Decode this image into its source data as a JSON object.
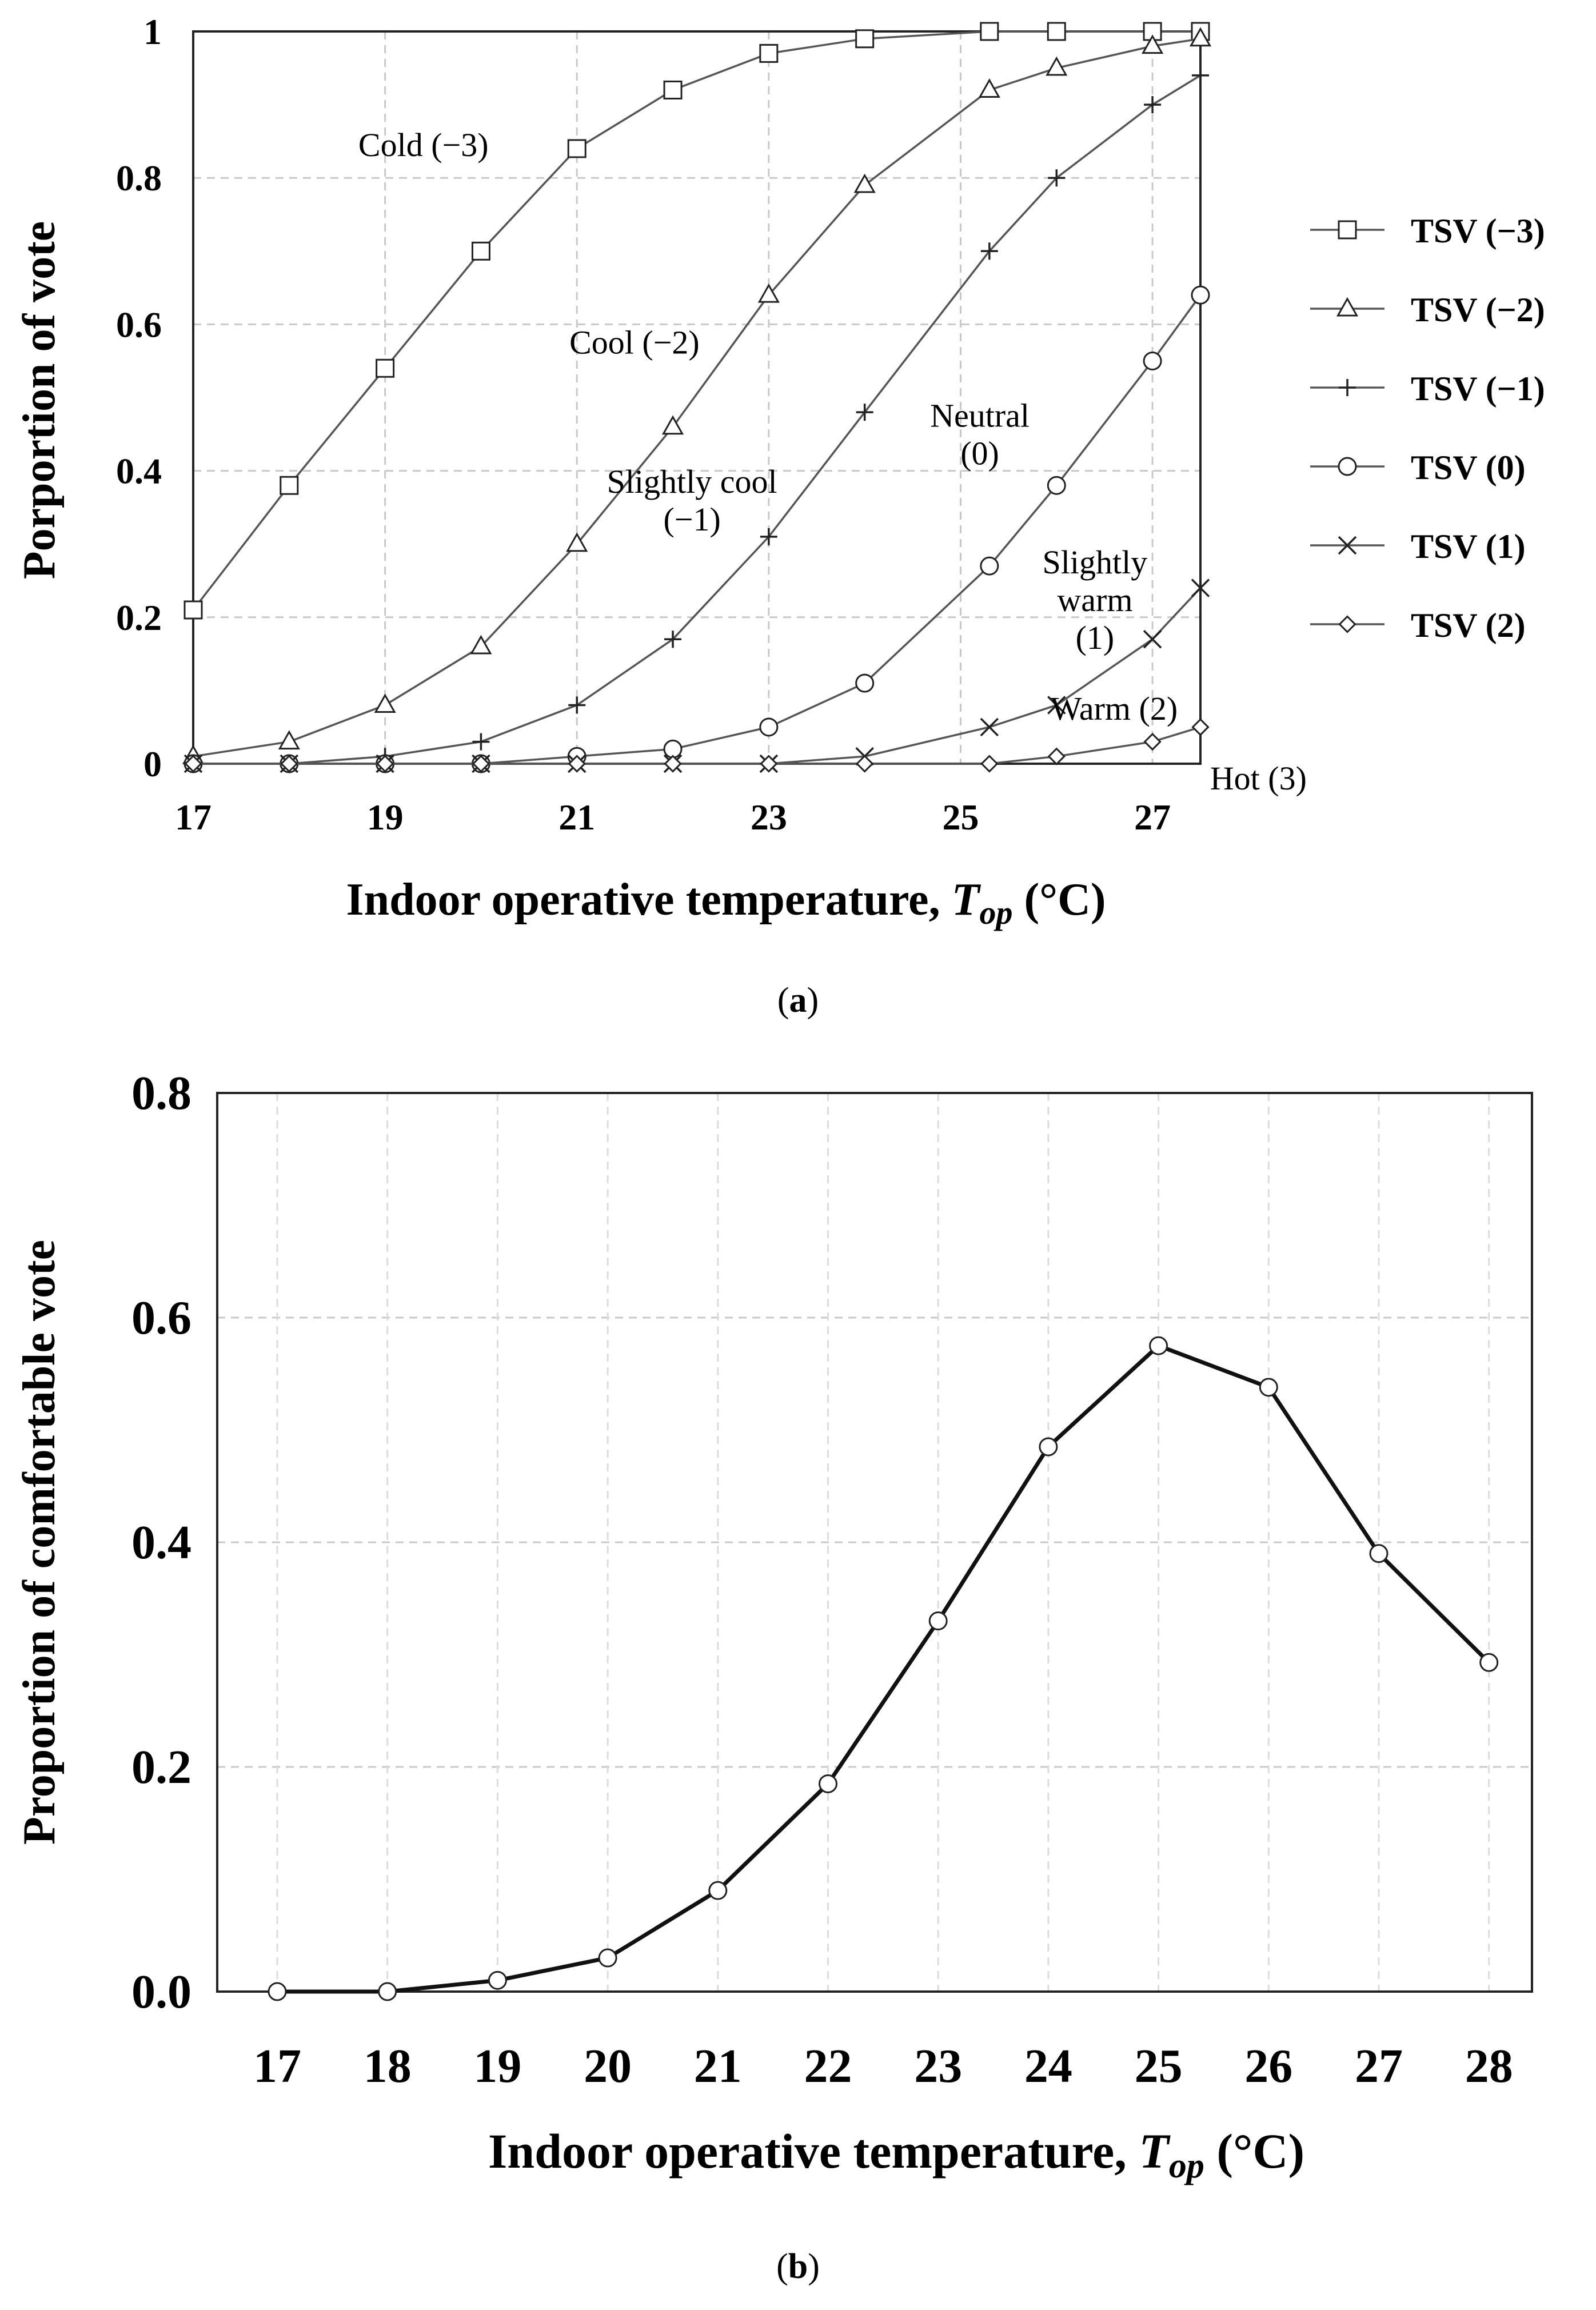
{
  "chart_data": [
    {
      "id": "a",
      "type": "line",
      "caption": "a",
      "xlabel_prefix": "Indoor  operative  temperature, ",
      "xlabel_var": "T",
      "xlabel_sub": "op",
      "xlabel_suffix": " (°C)",
      "ylabel": "Porportion of vote",
      "xlim": [
        17,
        27.5
      ],
      "ylim": [
        0,
        1
      ],
      "xticks": [
        17,
        19,
        21,
        23,
        25,
        27
      ],
      "yticks": [
        0,
        0.2,
        0.4,
        0.6,
        0.8,
        1
      ],
      "ytick_labels": [
        "0",
        "0.2",
        "0.4",
        "0.6",
        "0.8",
        "1"
      ],
      "grid": true,
      "legend_position": "right",
      "series": [
        {
          "name": "TSV (−3)",
          "marker": "square",
          "x": [
            17,
            18,
            19,
            20,
            21,
            22,
            23,
            24,
            25.3,
            26,
            27,
            27.5
          ],
          "y": [
            0.21,
            0.38,
            0.54,
            0.7,
            0.84,
            0.92,
            0.97,
            0.99,
            1.0,
            1.0,
            1.0,
            1.0
          ]
        },
        {
          "name": "TSV (−2)",
          "marker": "triangle",
          "x": [
            17,
            18,
            19,
            20,
            21,
            22,
            23,
            24,
            25.3,
            26,
            27,
            27.5
          ],
          "y": [
            0.01,
            0.03,
            0.08,
            0.16,
            0.3,
            0.46,
            0.64,
            0.79,
            0.92,
            0.95,
            0.98,
            0.99
          ]
        },
        {
          "name": "TSV (−1)",
          "marker": "plus",
          "x": [
            17,
            18,
            19,
            20,
            21,
            22,
            23,
            24,
            25.3,
            26,
            27,
            27.5
          ],
          "y": [
            0.0,
            0.0,
            0.01,
            0.03,
            0.08,
            0.17,
            0.31,
            0.48,
            0.7,
            0.8,
            0.9,
            0.94
          ]
        },
        {
          "name": "TSV (0)",
          "marker": "circle",
          "x": [
            17,
            18,
            19,
            20,
            21,
            22,
            23,
            24,
            25.3,
            26,
            27,
            27.5
          ],
          "y": [
            0.0,
            0.0,
            0.0,
            0.0,
            0.01,
            0.02,
            0.05,
            0.11,
            0.27,
            0.38,
            0.55,
            0.64
          ]
        },
        {
          "name": "TSV (1)",
          "marker": "x",
          "x": [
            17,
            18,
            19,
            20,
            21,
            22,
            23,
            24,
            25.3,
            26,
            27,
            27.5
          ],
          "y": [
            0.0,
            0.0,
            0.0,
            0.0,
            0.0,
            0.0,
            0.0,
            0.01,
            0.05,
            0.08,
            0.17,
            0.24
          ]
        },
        {
          "name": "TSV (2)",
          "marker": "diamond",
          "x": [
            17,
            18,
            19,
            20,
            21,
            22,
            23,
            24,
            25.3,
            26,
            27,
            27.5
          ],
          "y": [
            0.0,
            0.0,
            0.0,
            0.0,
            0.0,
            0.0,
            0.0,
            0.0,
            0.0,
            0.01,
            0.03,
            0.05
          ]
        }
      ],
      "annotations": [
        {
          "lines": [
            "Cold (−3)"
          ],
          "x": 19.4,
          "y": 0.83,
          "anchor": "middle"
        },
        {
          "lines": [
            "Cool (−2)"
          ],
          "x": 21.6,
          "y": 0.56,
          "anchor": "middle"
        },
        {
          "lines": [
            "Slightly  cool",
            "(−1)"
          ],
          "x": 22.2,
          "y": 0.37,
          "anchor": "middle"
        },
        {
          "lines": [
            "Neutral",
            "(0)"
          ],
          "x": 25.2,
          "y": 0.46,
          "anchor": "middle"
        },
        {
          "lines": [
            "Slightly",
            "warm",
            "(1)"
          ],
          "x": 26.4,
          "y": 0.26,
          "anchor": "middle"
        },
        {
          "lines": [
            "Warm (2)"
          ],
          "x": 26.6,
          "y": 0.06,
          "anchor": "middle"
        },
        {
          "lines": [
            "Hot (3)"
          ],
          "x": 27.6,
          "y": -0.035,
          "anchor": "start"
        }
      ]
    },
    {
      "id": "b",
      "type": "line",
      "caption": "b",
      "xlabel_prefix": "Indoor  operative  temperature, ",
      "xlabel_var": "T",
      "xlabel_sub": "op",
      "xlabel_suffix": " (°C)",
      "ylabel": "Proportion of comfortable vote",
      "categories": [
        "17",
        "18",
        "19",
        "20",
        "21",
        "22",
        "23",
        "24",
        "25",
        "26",
        "27",
        "28"
      ],
      "ylim": [
        0,
        0.8
      ],
      "yticks": [
        0,
        0.2,
        0.4,
        0.6,
        0.8
      ],
      "ytick_labels": [
        "0.0",
        "0.2",
        "0.4",
        "0.6",
        "0.8"
      ],
      "grid": true,
      "series": [
        {
          "name": "Proportion of comfortable vote",
          "marker": "circle",
          "values": [
            0.0,
            0.0,
            0.01,
            0.03,
            0.09,
            0.185,
            0.33,
            0.485,
            0.575,
            0.538,
            0.39,
            0.293
          ]
        }
      ]
    }
  ]
}
